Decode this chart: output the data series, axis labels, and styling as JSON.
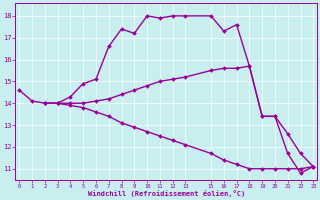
{
  "xlabel": "Windchill (Refroidissement éolien,°C)",
  "bg_color": "#c8eef0",
  "line_color": "#990099",
  "grid_color": "#b0dce0",
  "ylim": [
    10.5,
    18.6
  ],
  "xlim": [
    -0.3,
    23.3
  ],
  "y_ticks": [
    11,
    12,
    13,
    14,
    15,
    16,
    17,
    18
  ],
  "x_ticks": [
    0,
    1,
    2,
    3,
    4,
    5,
    6,
    7,
    8,
    9,
    10,
    11,
    12,
    13,
    15,
    16,
    17,
    18,
    19,
    20,
    21,
    22,
    23
  ],
  "series": [
    {
      "x": [
        0,
        1,
        2,
        3,
        4,
        5,
        6,
        7,
        8,
        9,
        10,
        11,
        12,
        13,
        15,
        16,
        17,
        18,
        19,
        20,
        21,
        22,
        23
      ],
      "y": [
        14.6,
        14.1,
        14.0,
        14.0,
        14.3,
        14.9,
        15.1,
        16.6,
        17.4,
        17.2,
        18.0,
        17.9,
        18.0,
        18.0,
        18.0,
        17.3,
        17.6,
        15.7,
        13.4,
        13.4,
        11.7,
        10.8,
        11.1
      ],
      "has_markers": true,
      "lw": 1.0
    },
    {
      "x": [
        2,
        3,
        4,
        5,
        6,
        7,
        8,
        9,
        10,
        11,
        12,
        13,
        15,
        16,
        17,
        18,
        19,
        20,
        21,
        22,
        23
      ],
      "y": [
        14.0,
        14.0,
        14.0,
        14.0,
        14.1,
        14.2,
        14.4,
        14.6,
        14.8,
        15.0,
        15.1,
        15.2,
        15.5,
        15.6,
        15.6,
        15.7,
        13.4,
        13.4,
        12.6,
        11.7,
        11.1
      ],
      "has_markers": true,
      "lw": 1.0
    },
    {
      "x": [
        2,
        3,
        4,
        5,
        6,
        7,
        8,
        9,
        10,
        11,
        12,
        13,
        15,
        16,
        17,
        18,
        19,
        20,
        21,
        22,
        23
      ],
      "y": [
        14.0,
        14.0,
        13.9,
        13.8,
        13.6,
        13.4,
        13.1,
        12.9,
        12.7,
        12.5,
        12.3,
        12.1,
        11.7,
        11.4,
        11.2,
        11.0,
        11.0,
        11.0,
        11.0,
        11.0,
        11.1
      ],
      "has_markers": true,
      "lw": 1.0
    }
  ]
}
